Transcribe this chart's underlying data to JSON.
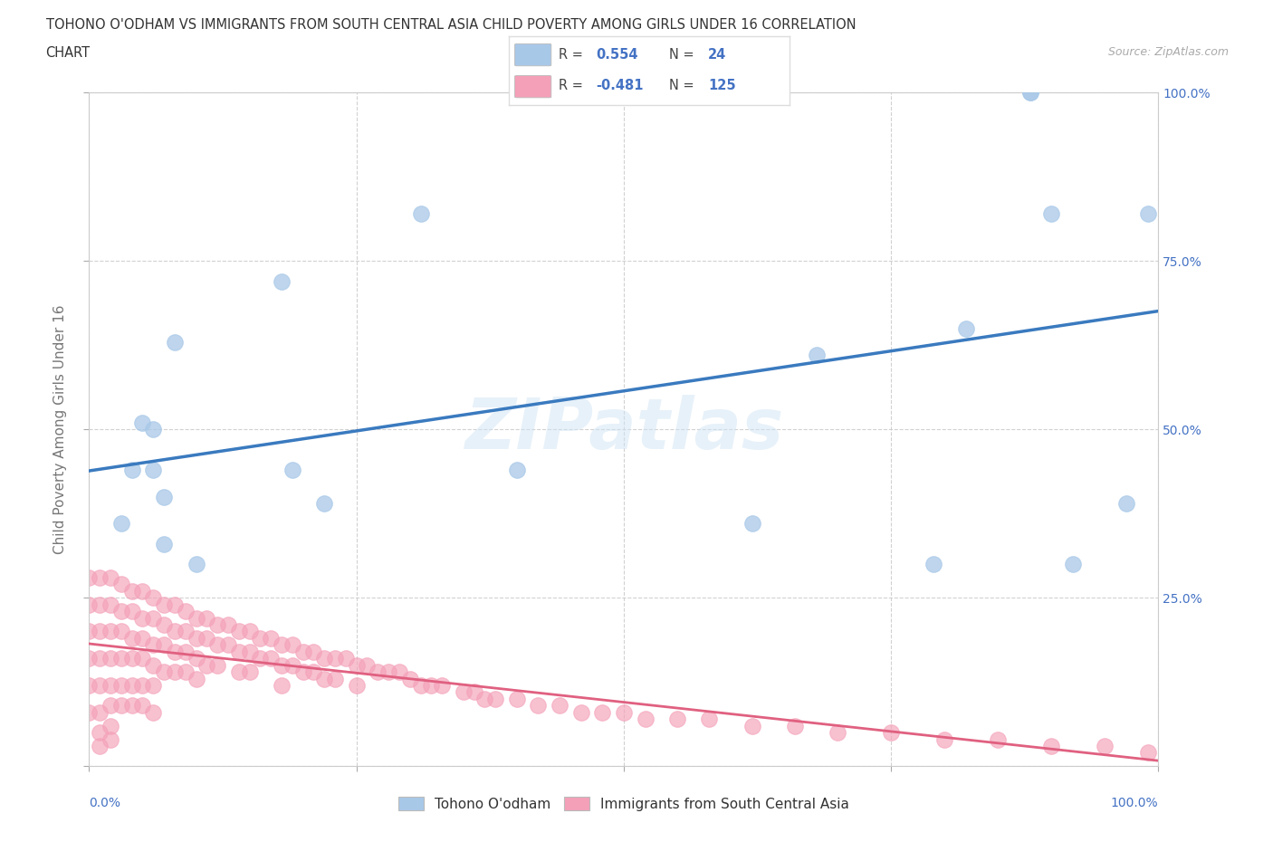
{
  "title_line1": "TOHONO O'ODHAM VS IMMIGRANTS FROM SOUTH CENTRAL ASIA CHILD POVERTY AMONG GIRLS UNDER 16 CORRELATION",
  "title_line2": "CHART",
  "source_text": "Source: ZipAtlas.com",
  "ylabel": "Child Poverty Among Girls Under 16",
  "blue_R": 0.554,
  "blue_N": 24,
  "pink_R": -0.481,
  "pink_N": 125,
  "blue_color": "#a8c8e8",
  "pink_color": "#f4a0b8",
  "blue_line_color": "#3a7abf",
  "pink_line_color": "#e06080",
  "watermark": "ZIPatlas",
  "xlim": [
    0,
    1
  ],
  "ylim": [
    0,
    1
  ],
  "right_yticks": [
    0.0,
    0.25,
    0.5,
    0.75,
    1.0
  ],
  "right_yticklabels": [
    "",
    "25.0%",
    "50.0%",
    "75.0%",
    "100.0%"
  ],
  "x_left_label": "0.0%",
  "x_right_label": "100.0%",
  "grid_color": "#cccccc",
  "tick_color": "#4472c4",
  "axis_label_color": "#777777",
  "background_color": "#ffffff",
  "legend_label1": "Tohono O'odham",
  "legend_label2": "Immigrants from South Central Asia",
  "blue_scatter_x": [
    0.03,
    0.04,
    0.05,
    0.06,
    0.06,
    0.07,
    0.07,
    0.08,
    0.1,
    0.18,
    0.19,
    0.22,
    0.31,
    0.4,
    0.62,
    0.68,
    0.79,
    0.82,
    0.88,
    0.88,
    0.9,
    0.92,
    0.97,
    0.99
  ],
  "blue_scatter_y": [
    0.36,
    0.44,
    0.51,
    0.44,
    0.5,
    0.33,
    0.4,
    0.63,
    0.3,
    0.72,
    0.44,
    0.39,
    0.82,
    0.44,
    0.36,
    0.61,
    0.3,
    0.65,
    1.0,
    1.0,
    0.82,
    0.3,
    0.39,
    0.82
  ],
  "pink_scatter_x": [
    0.0,
    0.0,
    0.0,
    0.0,
    0.0,
    0.0,
    0.01,
    0.01,
    0.01,
    0.01,
    0.01,
    0.01,
    0.01,
    0.01,
    0.02,
    0.02,
    0.02,
    0.02,
    0.02,
    0.02,
    0.02,
    0.02,
    0.03,
    0.03,
    0.03,
    0.03,
    0.03,
    0.03,
    0.04,
    0.04,
    0.04,
    0.04,
    0.04,
    0.04,
    0.05,
    0.05,
    0.05,
    0.05,
    0.05,
    0.05,
    0.06,
    0.06,
    0.06,
    0.06,
    0.06,
    0.06,
    0.07,
    0.07,
    0.07,
    0.07,
    0.08,
    0.08,
    0.08,
    0.08,
    0.09,
    0.09,
    0.09,
    0.09,
    0.1,
    0.1,
    0.1,
    0.1,
    0.11,
    0.11,
    0.11,
    0.12,
    0.12,
    0.12,
    0.13,
    0.13,
    0.14,
    0.14,
    0.14,
    0.15,
    0.15,
    0.15,
    0.16,
    0.16,
    0.17,
    0.17,
    0.18,
    0.18,
    0.18,
    0.19,
    0.19,
    0.2,
    0.2,
    0.21,
    0.21,
    0.22,
    0.22,
    0.23,
    0.23,
    0.24,
    0.25,
    0.25,
    0.26,
    0.27,
    0.28,
    0.29,
    0.3,
    0.31,
    0.32,
    0.33,
    0.35,
    0.36,
    0.37,
    0.38,
    0.4,
    0.42,
    0.44,
    0.46,
    0.48,
    0.5,
    0.52,
    0.55,
    0.58,
    0.62,
    0.66,
    0.7,
    0.75,
    0.8,
    0.85,
    0.9,
    0.95,
    0.99
  ],
  "pink_scatter_y": [
    0.28,
    0.24,
    0.2,
    0.16,
    0.12,
    0.08,
    0.28,
    0.24,
    0.2,
    0.16,
    0.12,
    0.08,
    0.05,
    0.03,
    0.28,
    0.24,
    0.2,
    0.16,
    0.12,
    0.09,
    0.06,
    0.04,
    0.27,
    0.23,
    0.2,
    0.16,
    0.12,
    0.09,
    0.26,
    0.23,
    0.19,
    0.16,
    0.12,
    0.09,
    0.26,
    0.22,
    0.19,
    0.16,
    0.12,
    0.09,
    0.25,
    0.22,
    0.18,
    0.15,
    0.12,
    0.08,
    0.24,
    0.21,
    0.18,
    0.14,
    0.24,
    0.2,
    0.17,
    0.14,
    0.23,
    0.2,
    0.17,
    0.14,
    0.22,
    0.19,
    0.16,
    0.13,
    0.22,
    0.19,
    0.15,
    0.21,
    0.18,
    0.15,
    0.21,
    0.18,
    0.2,
    0.17,
    0.14,
    0.2,
    0.17,
    0.14,
    0.19,
    0.16,
    0.19,
    0.16,
    0.18,
    0.15,
    0.12,
    0.18,
    0.15,
    0.17,
    0.14,
    0.17,
    0.14,
    0.16,
    0.13,
    0.16,
    0.13,
    0.16,
    0.15,
    0.12,
    0.15,
    0.14,
    0.14,
    0.14,
    0.13,
    0.12,
    0.12,
    0.12,
    0.11,
    0.11,
    0.1,
    0.1,
    0.1,
    0.09,
    0.09,
    0.08,
    0.08,
    0.08,
    0.07,
    0.07,
    0.07,
    0.06,
    0.06,
    0.05,
    0.05,
    0.04,
    0.04,
    0.03,
    0.03,
    0.02
  ]
}
